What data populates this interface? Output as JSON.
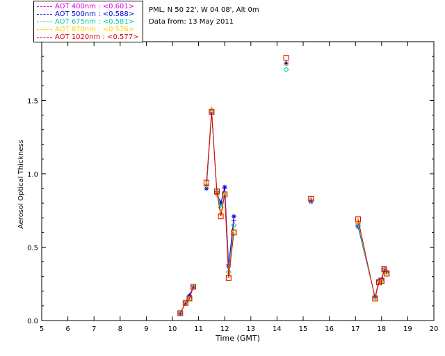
{
  "station_info": {
    "location": "PML, N 50 22', W 04 08', Alt 0m",
    "date": "Data from: 13 May 2011"
  },
  "chart_data": {
    "type": "line",
    "title": "",
    "xlabel": "Time (GMT)",
    "ylabel": "Aerosol Optical Thickness",
    "xlim": [
      5,
      20
    ],
    "ylim": [
      0.0,
      1.9
    ],
    "xticks": [
      5,
      6,
      7,
      8,
      9,
      10,
      11,
      12,
      13,
      14,
      15,
      16,
      17,
      18,
      19,
      20
    ],
    "yticks": [
      0.0,
      0.5,
      1.0,
      1.5
    ],
    "ytick_labels": [
      "0.0",
      "0.5",
      "1.0",
      "1.5"
    ],
    "x": [
      10.3,
      10.5,
      10.65,
      10.8,
      11.3,
      11.5,
      11.7,
      11.85,
      12.0,
      12.15,
      12.35,
      14.35,
      15.3,
      17.1,
      17.75,
      17.9,
      18.0,
      18.1,
      18.2
    ],
    "segments": [
      [
        0,
        3
      ],
      [
        4,
        10
      ],
      [
        13,
        18
      ]
    ],
    "series": [
      {
        "name": "AOT  400nm",
        "mean_label": "<0.601>",
        "color": "#e000e0",
        "marker": "+",
        "values": [
          0.05,
          0.12,
          0.16,
          0.23,
          0.92,
          1.44,
          0.86,
          0.8,
          0.9,
          0.38,
          0.68,
          1.76,
          0.82,
          0.66,
          0.16,
          0.28,
          0.28,
          0.35,
          0.33
        ]
      },
      {
        "name": "AOT  500nm",
        "mean_label": "<0.588>",
        "color": "#0000dc",
        "marker": "*",
        "values": [
          0.05,
          0.12,
          0.17,
          0.23,
          0.9,
          1.42,
          0.87,
          0.8,
          0.91,
          0.37,
          0.71,
          1.75,
          0.81,
          0.64,
          0.16,
          0.27,
          0.28,
          0.35,
          0.33
        ]
      },
      {
        "name": "AOT  675nm",
        "mean_label": "<0.581>",
        "color": "#00d0a0",
        "marker": "diamond",
        "values": [
          0.05,
          0.12,
          0.15,
          0.23,
          0.92,
          1.43,
          0.88,
          0.77,
          0.86,
          0.33,
          0.65,
          1.71,
          0.82,
          0.65,
          0.16,
          0.27,
          0.27,
          0.34,
          0.33
        ]
      },
      {
        "name": "AOT  870nm",
        "mean_label": "<0.576>",
        "color": "#ffd000",
        "marker": "triangle",
        "values": [
          0.05,
          0.12,
          0.15,
          0.23,
          0.93,
          1.44,
          0.87,
          0.73,
          0.86,
          0.31,
          0.61,
          1.76,
          0.83,
          0.68,
          0.15,
          0.26,
          0.27,
          0.34,
          0.32
        ]
      },
      {
        "name": "AOT 1020nm",
        "mean_label": "<0.577>",
        "color": "#e00000",
        "marker": "square",
        "values": [
          0.05,
          0.12,
          0.15,
          0.23,
          0.94,
          1.42,
          0.88,
          0.71,
          0.86,
          0.29,
          0.6,
          1.79,
          0.83,
          0.69,
          0.15,
          0.26,
          0.27,
          0.35,
          0.32
        ]
      }
    ]
  }
}
